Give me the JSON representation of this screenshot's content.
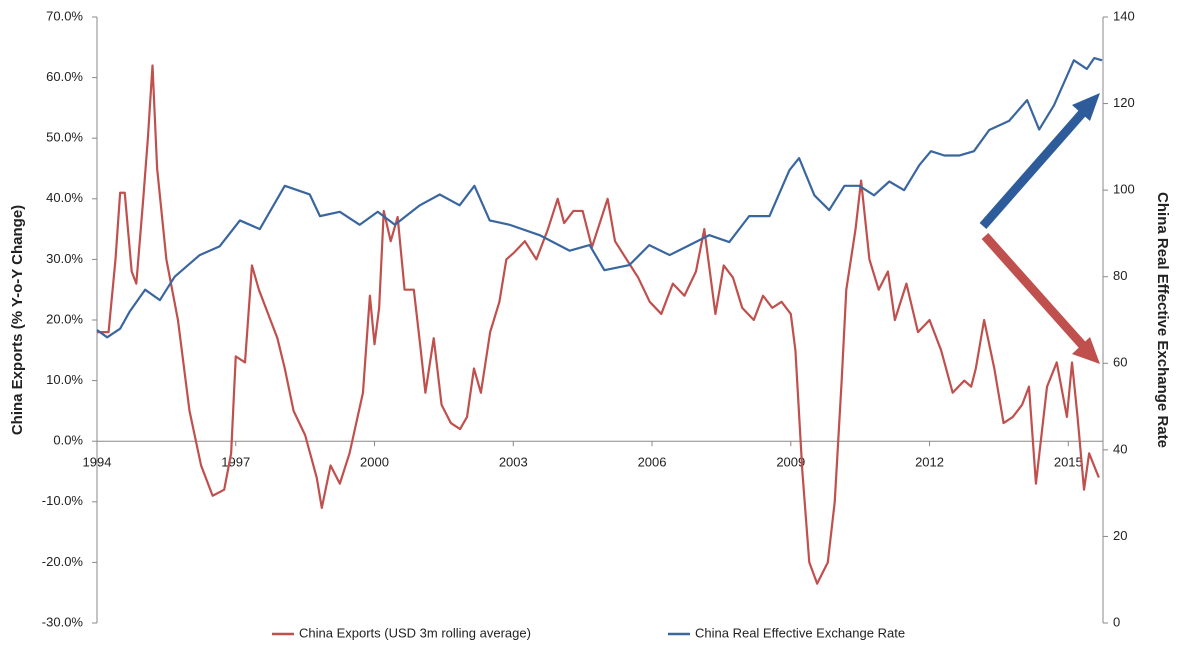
{
  "chart_data": {
    "type": "line",
    "ylabel": "China Exports (% Y-o-Y Change)",
    "y2label": "China Real Effective Exchange Rate",
    "xlim": [
      1994,
      2015.75
    ],
    "xticks": [
      1994,
      1997,
      2000,
      2003,
      2006,
      2009,
      2012,
      2015
    ],
    "ylim": [
      -30,
      70
    ],
    "yticks": [
      {
        "value": -30,
        "label": "-30.0%"
      },
      {
        "value": -20,
        "label": "-20.0%"
      },
      {
        "value": -10,
        "label": "-10.0%"
      },
      {
        "value": 0,
        "label": "0.0%"
      },
      {
        "value": 10,
        "label": "10.0%"
      },
      {
        "value": 20,
        "label": "20.0%"
      },
      {
        "value": 30,
        "label": "30.0%"
      },
      {
        "value": 40,
        "label": "40.0%"
      },
      {
        "value": 50,
        "label": "50.0%"
      },
      {
        "value": 60,
        "label": "60.0%"
      },
      {
        "value": 70,
        "label": "70.0%"
      }
    ],
    "y2lim": [
      0,
      140
    ],
    "y2ticks": [
      0,
      20,
      40,
      60,
      80,
      100,
      120,
      140
    ],
    "series": [
      {
        "name": "China Exports (USD 3m rolling average)",
        "color": "#c0504d",
        "x": [
          1994.0,
          1994.25,
          1994.4,
          1994.5,
          1994.6,
          1994.75,
          1994.85,
          1995.0,
          1995.1,
          1995.2,
          1995.3,
          1995.5,
          1995.75,
          1996.0,
          1996.25,
          1996.5,
          1996.75,
          1996.9,
          1997.0,
          1997.2,
          1997.35,
          1997.5,
          1997.75,
          1997.9,
          1998.06,
          1998.25,
          1998.5,
          1998.75,
          1998.86,
          1999.05,
          1999.25,
          1999.46,
          1999.75,
          1999.9,
          2000.0,
          2000.1,
          2000.2,
          2000.35,
          2000.5,
          2000.65,
          2000.85,
          2001.0,
          2001.1,
          2001.28,
          2001.45,
          2001.65,
          2001.85,
          2002.0,
          2002.15,
          2002.3,
          2002.5,
          2002.7,
          2002.85,
          2003.0,
          2003.25,
          2003.5,
          2003.75,
          2003.96,
          2004.1,
          2004.3,
          2004.5,
          2004.7,
          2005.04,
          2005.2,
          2005.45,
          2005.7,
          2005.95,
          2006.2,
          2006.45,
          2006.7,
          2006.95,
          2007.13,
          2007.25,
          2007.37,
          2007.55,
          2007.75,
          2007.95,
          2008.2,
          2008.4,
          2008.6,
          2008.8,
          2009.0,
          2009.1,
          2009.25,
          2009.4,
          2009.57,
          2009.8,
          2009.95,
          2010.1,
          2010.2,
          2010.4,
          2010.52,
          2010.7,
          2010.9,
          2011.1,
          2011.25,
          2011.5,
          2011.75,
          2012.0,
          2012.25,
          2012.5,
          2012.75,
          2012.9,
          2013.0,
          2013.18,
          2013.4,
          2013.6,
          2013.8,
          2014.0,
          2014.15,
          2014.3,
          2014.54,
          2014.75,
          2014.97,
          2015.08,
          2015.2,
          2015.34,
          2015.45,
          2015.66
        ],
        "values": [
          18,
          18,
          30,
          41,
          41,
          28,
          26,
          40,
          50,
          62,
          45,
          30,
          20,
          5,
          -4,
          -9,
          -8,
          -2,
          14,
          13,
          29,
          25,
          20,
          17,
          12,
          5,
          1,
          -6,
          -11,
          -4,
          -7,
          -2,
          8,
          24,
          16,
          22,
          38,
          33,
          37,
          25,
          25,
          15,
          8,
          17,
          6,
          3,
          2,
          4,
          12,
          8,
          18,
          23,
          30,
          31,
          33,
          30,
          35,
          40,
          36,
          38,
          38,
          32,
          40,
          33,
          30,
          27,
          23,
          21,
          26,
          24,
          28,
          35,
          28,
          21,
          29,
          27,
          22,
          20,
          24,
          22,
          23,
          21,
          15,
          -5,
          -20,
          -23.5,
          -20,
          -10,
          10,
          25,
          35,
          43,
          30,
          25,
          28,
          20,
          26,
          18,
          20,
          15,
          8,
          10,
          9,
          12,
          20,
          12,
          3,
          4,
          6,
          9,
          -7,
          9,
          13,
          4,
          13,
          4,
          -8,
          -2,
          -6
        ]
      },
      {
        "name": "China Real Effective Exchange Rate",
        "color": "#3a66a0",
        "axis": "y2",
        "x": [
          1994.0,
          1994.22,
          1994.5,
          1994.71,
          1995.04,
          1995.36,
          1995.68,
          1996.22,
          1996.65,
          1997.09,
          1997.52,
          1998.06,
          1998.6,
          1998.82,
          1999.25,
          1999.68,
          2000.07,
          2000.44,
          2000.98,
          2001.41,
          2001.84,
          2002.16,
          2002.49,
          2002.92,
          2003.57,
          2004.22,
          2004.65,
          2004.97,
          2005.51,
          2005.94,
          2006.38,
          2006.81,
          2007.24,
          2007.67,
          2008.1,
          2008.54,
          2008.97,
          2009.18,
          2009.51,
          2009.83,
          2010.16,
          2010.48,
          2010.8,
          2011.13,
          2011.45,
          2011.78,
          2012.03,
          2012.32,
          2012.64,
          2012.96,
          2013.29,
          2013.72,
          2014.11,
          2014.37,
          2014.69,
          2015.12,
          2015.4,
          2015.56,
          2015.73
        ],
        "values": [
          67.7,
          66,
          68,
          72,
          77,
          74.6,
          80,
          85,
          87,
          93,
          91,
          101,
          99,
          94,
          95,
          92,
          95,
          92,
          96.5,
          99,
          96.5,
          101,
          93,
          92,
          89.6,
          86,
          87.3,
          81.5,
          82.7,
          87.3,
          85,
          87.3,
          89.6,
          88,
          94,
          94,
          104.6,
          107.4,
          98.8,
          95.4,
          101,
          101,
          98.8,
          102,
          100,
          105.8,
          109,
          108,
          108,
          109,
          113.9,
          116,
          120.8,
          114,
          119.6,
          130,
          128,
          130.5,
          130
        ]
      }
    ]
  }
}
